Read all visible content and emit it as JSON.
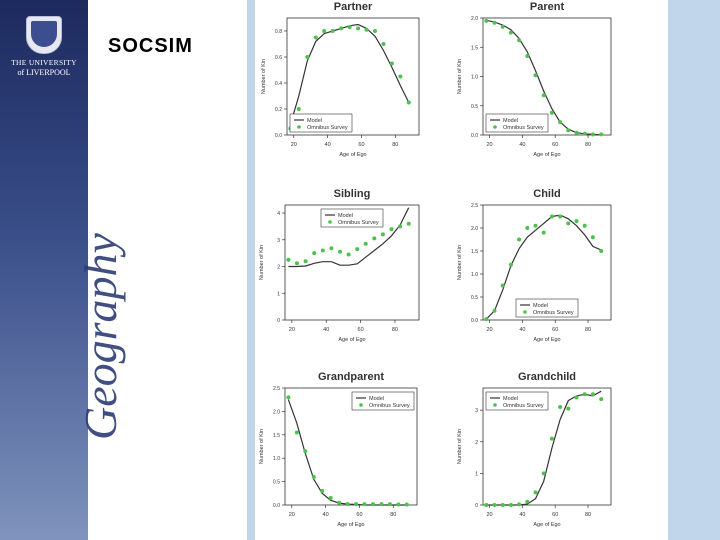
{
  "slide": {
    "title": "SOCSIM",
    "university_line1": "THE UNIVERSITY",
    "university_line2": "of LIVERPOOL",
    "department": "Geography",
    "sidebar_color": "#2a3a72",
    "band_color": "#c1d6ea"
  },
  "legend_labels": {
    "model": "Model",
    "survey": "Omnibus Survey"
  },
  "colors": {
    "model": "#333333",
    "survey": "#4cc24c"
  },
  "chart_data": [
    {
      "type": "line",
      "title": "Partner",
      "xlabel": "Age of Ego",
      "ylabel": "Number of Kin",
      "xlim": [
        16,
        94
      ],
      "ylim": [
        0,
        0.9
      ],
      "xticks": [
        20,
        40,
        60,
        80
      ],
      "yticks": [
        0.0,
        0.2,
        0.4,
        0.6,
        0.8
      ],
      "legend": "bottom-left",
      "series": [
        {
          "name": "Model",
          "x": [
            18,
            23,
            28,
            33,
            38,
            43,
            48,
            53,
            58,
            63,
            68,
            73,
            78,
            83,
            88
          ],
          "y": [
            0.08,
            0.3,
            0.57,
            0.72,
            0.78,
            0.8,
            0.82,
            0.84,
            0.85,
            0.82,
            0.76,
            0.65,
            0.52,
            0.38,
            0.25
          ]
        },
        {
          "name": "Omnibus Survey",
          "x": [
            18,
            23,
            28,
            33,
            38,
            43,
            48,
            53,
            58,
            63,
            68,
            73,
            78,
            83,
            88
          ],
          "y": [
            0.05,
            0.2,
            0.6,
            0.75,
            0.8,
            0.8,
            0.82,
            0.83,
            0.82,
            0.81,
            0.8,
            0.7,
            0.55,
            0.45,
            0.25
          ]
        }
      ]
    },
    {
      "type": "line",
      "title": "Parent",
      "xlabel": "Age of Ego",
      "ylabel": "Number of Kin",
      "xlim": [
        16,
        94
      ],
      "ylim": [
        0,
        2.0
      ],
      "xticks": [
        20,
        40,
        60,
        80
      ],
      "yticks": [
        0.0,
        0.5,
        1.0,
        1.5,
        2.0
      ],
      "legend": "bottom-left",
      "series": [
        {
          "name": "Model",
          "x": [
            18,
            23,
            28,
            33,
            38,
            43,
            48,
            53,
            58,
            63,
            68,
            73,
            78,
            83,
            88
          ],
          "y": [
            1.96,
            1.93,
            1.88,
            1.8,
            1.65,
            1.42,
            1.1,
            0.75,
            0.45,
            0.22,
            0.1,
            0.04,
            0.02,
            0.01,
            0.0
          ]
        },
        {
          "name": "Omnibus Survey",
          "x": [
            18,
            23,
            28,
            33,
            38,
            43,
            48,
            53,
            58,
            63,
            68,
            73,
            78,
            83,
            88
          ],
          "y": [
            1.95,
            1.92,
            1.85,
            1.75,
            1.62,
            1.35,
            1.02,
            0.68,
            0.38,
            0.22,
            0.08,
            0.04,
            0.02,
            0.01,
            0.01
          ]
        }
      ]
    },
    {
      "type": "line",
      "title": "Sibling",
      "xlabel": "Age of Ego",
      "ylabel": "Number of Kin",
      "xlim": [
        16,
        94
      ],
      "ylim": [
        0,
        4.3
      ],
      "xticks": [
        20,
        40,
        60,
        80
      ],
      "yticks": [
        0,
        1,
        2,
        3,
        4
      ],
      "legend": "top-center",
      "series": [
        {
          "name": "Model",
          "x": [
            18,
            23,
            28,
            33,
            38,
            43,
            48,
            53,
            58,
            63,
            68,
            73,
            78,
            83,
            88
          ],
          "y": [
            2.0,
            2.0,
            2.02,
            2.12,
            2.18,
            2.18,
            2.05,
            2.05,
            2.1,
            2.35,
            2.6,
            2.85,
            3.15,
            3.55,
            4.2
          ]
        },
        {
          "name": "Omnibus Survey",
          "x": [
            18,
            23,
            28,
            33,
            38,
            43,
            48,
            53,
            58,
            63,
            68,
            73,
            78,
            83,
            88
          ],
          "y": [
            2.25,
            2.12,
            2.2,
            2.5,
            2.6,
            2.68,
            2.55,
            2.45,
            2.65,
            2.85,
            3.05,
            3.2,
            3.4,
            3.5,
            3.6
          ]
        }
      ]
    },
    {
      "type": "line",
      "title": "Child",
      "xlabel": "Age of Ego",
      "ylabel": "Number of Kin",
      "xlim": [
        16,
        94
      ],
      "ylim": [
        0,
        2.5
      ],
      "xticks": [
        20,
        40,
        60,
        80
      ],
      "yticks": [
        0.0,
        0.5,
        1.0,
        1.5,
        2.0,
        2.5
      ],
      "legend": "bottom-center",
      "series": [
        {
          "name": "Model",
          "x": [
            18,
            23,
            28,
            33,
            38,
            43,
            48,
            53,
            58,
            63,
            68,
            73,
            78,
            83,
            88
          ],
          "y": [
            0.02,
            0.2,
            0.65,
            1.18,
            1.55,
            1.8,
            1.95,
            2.1,
            2.25,
            2.28,
            2.2,
            2.05,
            1.85,
            1.6,
            1.52
          ]
        },
        {
          "name": "Omnibus Survey",
          "x": [
            18,
            23,
            28,
            33,
            38,
            43,
            48,
            53,
            58,
            63,
            68,
            73,
            78,
            83,
            88
          ],
          "y": [
            0.02,
            0.2,
            0.75,
            1.2,
            1.75,
            2.0,
            2.05,
            1.9,
            2.25,
            2.25,
            2.1,
            2.15,
            2.05,
            1.8,
            1.5
          ]
        }
      ]
    },
    {
      "type": "line",
      "title": "Grandparent",
      "xlabel": "Age of Ego",
      "ylabel": "Number of Kin",
      "xlim": [
        16,
        94
      ],
      "ylim": [
        0,
        2.5
      ],
      "xticks": [
        20,
        40,
        60,
        80
      ],
      "yticks": [
        0.0,
        0.5,
        1.0,
        1.5,
        2.0,
        2.5
      ],
      "legend": "top-right",
      "series": [
        {
          "name": "Model",
          "x": [
            18,
            23,
            28,
            33,
            38,
            43,
            48,
            53,
            58,
            63,
            68,
            73,
            78,
            83,
            88
          ],
          "y": [
            2.25,
            1.75,
            1.1,
            0.55,
            0.25,
            0.1,
            0.04,
            0.02,
            0.01,
            0.0,
            0.0,
            0.0,
            0.0,
            0.0,
            0.0
          ]
        },
        {
          "name": "Omnibus Survey",
          "x": [
            18,
            23,
            28,
            33,
            38,
            43,
            48,
            53,
            58,
            63,
            68,
            73,
            78,
            83,
            88
          ],
          "y": [
            2.3,
            1.55,
            1.15,
            0.6,
            0.3,
            0.15,
            0.05,
            0.02,
            0.02,
            0.02,
            0.02,
            0.02,
            0.02,
            0.01,
            0.01
          ]
        }
      ]
    },
    {
      "type": "line",
      "title": "Grandchild",
      "xlabel": "Age of Ego",
      "ylabel": "Number of Kin",
      "xlim": [
        16,
        94
      ],
      "ylim": [
        0,
        3.7
      ],
      "xticks": [
        20,
        40,
        60,
        80
      ],
      "yticks": [
        0,
        1,
        2,
        3
      ],
      "legend": "top-left",
      "series": [
        {
          "name": "Model",
          "x": [
            18,
            23,
            28,
            33,
            38,
            43,
            48,
            53,
            58,
            63,
            68,
            73,
            78,
            83,
            88
          ],
          "y": [
            0.0,
            0.0,
            0.0,
            0.0,
            0.0,
            0.03,
            0.2,
            0.75,
            1.8,
            2.7,
            3.3,
            3.45,
            3.5,
            3.45,
            3.6
          ]
        },
        {
          "name": "Omnibus Survey",
          "x": [
            18,
            23,
            28,
            33,
            38,
            43,
            48,
            53,
            58,
            63,
            68,
            73,
            78,
            83,
            88
          ],
          "y": [
            0.0,
            0.0,
            0.0,
            0.0,
            0.02,
            0.1,
            0.4,
            1.0,
            2.1,
            3.1,
            3.05,
            3.4,
            3.5,
            3.5,
            3.35
          ]
        }
      ]
    }
  ]
}
